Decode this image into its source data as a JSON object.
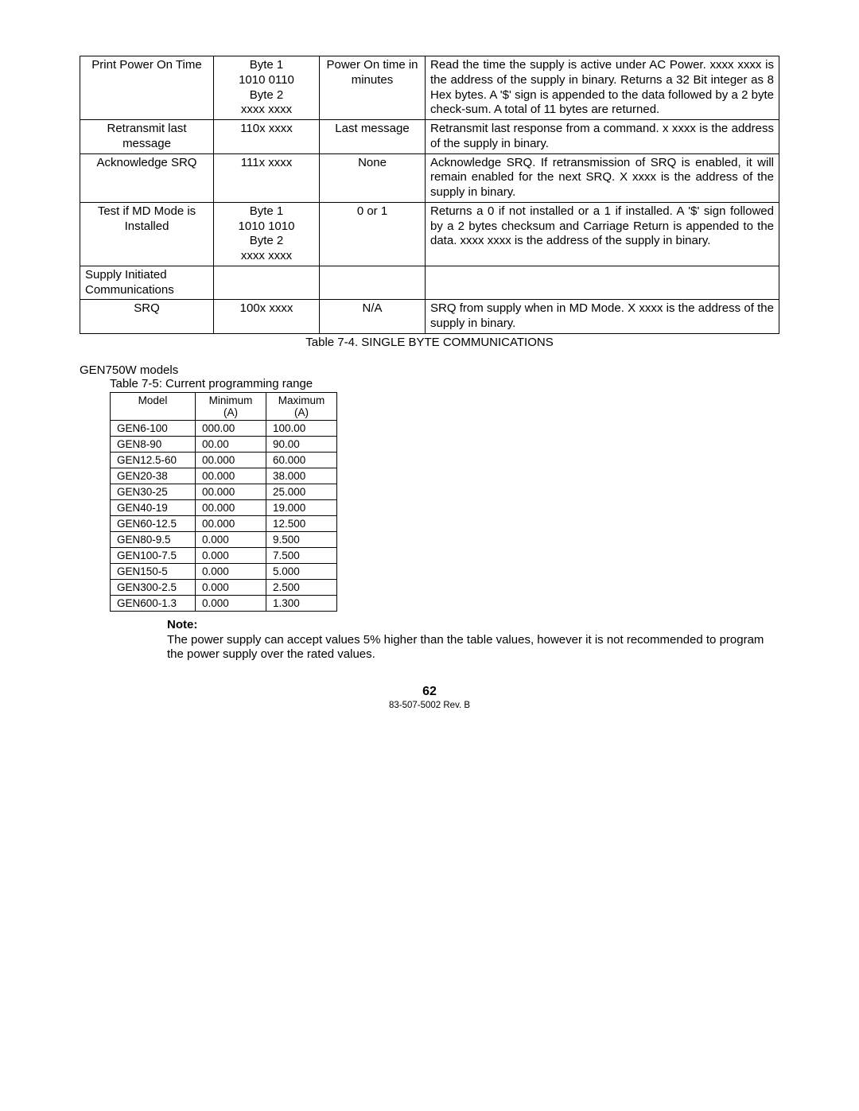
{
  "table1": {
    "rows": [
      {
        "c1": "Print Power On Time",
        "c2": "Byte 1\n1010 0110\nByte 2\nxxxx xxxx",
        "c3": "Power On time in minutes",
        "c4": "Read the time the supply is active under AC Power. xxxx xxxx is the address of the supply in binary. Returns a 32 Bit integer as 8 Hex bytes. A '$' sign is appended to the data followed by a 2 byte check-sum. A total of 11 bytes are returned."
      },
      {
        "c1": "Retransmit last message",
        "c2": "110x xxxx",
        "c3": "Last message",
        "c4": "Retransmit last response from a command. x xxxx is the address of the supply in binary."
      },
      {
        "c1": "Acknowledge SRQ",
        "c2": "111x xxxx",
        "c3": "None",
        "c4": "Acknowledge SRQ. If retransmission of SRQ is enabled, it will remain enabled for the next SRQ. X xxxx is the address of the supply in binary."
      },
      {
        "c1": "Test if MD Mode is Installed",
        "c2": "Byte 1\n1010 1010\nByte 2\nxxxx xxxx",
        "c3": "0 or 1",
        "c4": "Returns a 0 if not installed or a 1 if installed. A '$' sign followed by a 2 bytes checksum and Carriage Return is appended to the data. xxxx xxxx is the address of the supply in binary."
      },
      {
        "c1": "Supply Initiated Communications",
        "c2": "",
        "c3": "",
        "c4": "",
        "c1left": true
      },
      {
        "c1": "SRQ",
        "c2": "100x xxxx",
        "c3": "N/A",
        "c4": "SRQ from supply when in MD Mode. X xxxx is the address of the supply in binary."
      }
    ],
    "caption": "Table 7-4. SINGLE BYTE COMMUNICATIONS"
  },
  "section": "GEN750W models",
  "table2": {
    "caption": "Table 7-5: Current programming range",
    "headers": {
      "model": "Model",
      "min": "Minimum (A)",
      "max": "Maximum (A)"
    },
    "rows": [
      {
        "m": "GEN6-100",
        "lo": "000.00",
        "hi": "100.00"
      },
      {
        "m": "GEN8-90",
        "lo": "00.00",
        "hi": "90.00"
      },
      {
        "m": "GEN12.5-60",
        "lo": "00.000",
        "hi": "60.000"
      },
      {
        "m": "GEN20-38",
        "lo": "00.000",
        "hi": "38.000"
      },
      {
        "m": "GEN30-25",
        "lo": "00.000",
        "hi": "25.000"
      },
      {
        "m": "GEN40-19",
        "lo": "00.000",
        "hi": "19.000"
      },
      {
        "m": "GEN60-12.5",
        "lo": "00.000",
        "hi": "12.500"
      },
      {
        "m": "GEN80-9.5",
        "lo": "0.000",
        "hi": "9.500"
      },
      {
        "m": "GEN100-7.5",
        "lo": "0.000",
        "hi": "7.500"
      },
      {
        "m": "GEN150-5",
        "lo": "0.000",
        "hi": "5.000"
      },
      {
        "m": "GEN300-2.5",
        "lo": "0.000",
        "hi": "2.500"
      },
      {
        "m": "GEN600-1.3",
        "lo": "0.000",
        "hi": "1.300"
      }
    ]
  },
  "note": {
    "title": "Note:",
    "body": "The power supply can accept values 5% higher than the table values, however it is not recommended to program the power supply over the rated values."
  },
  "page_number": "62",
  "footer": "83-507-5002 Rev. B"
}
